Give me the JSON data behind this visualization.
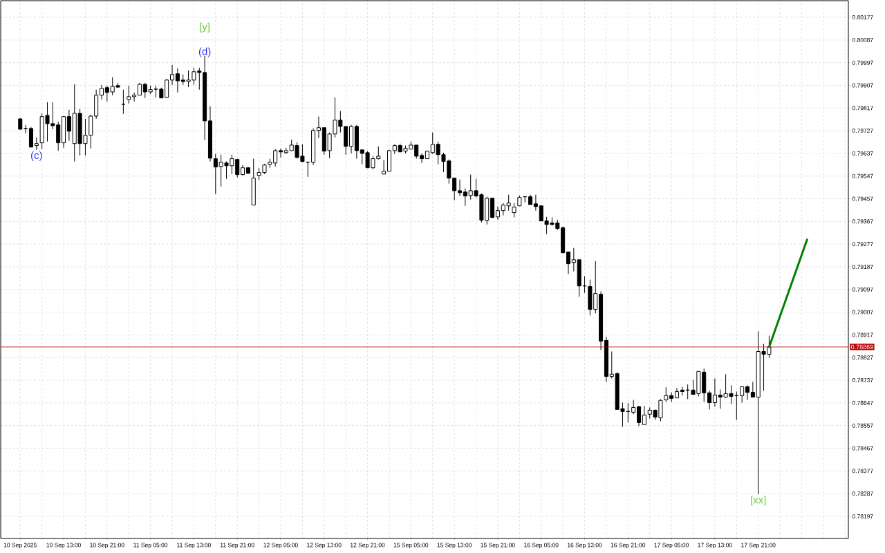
{
  "chart_data": {
    "type": "candlestick",
    "categories": [
      "10 Sep 2025",
      null,
      null,
      null,
      null,
      null,
      null,
      null,
      "10 Sep 13:00",
      null,
      null,
      null,
      null,
      null,
      null,
      null,
      "10 Sep 21:00",
      null,
      null,
      null,
      null,
      null,
      null,
      null,
      "11 Sep 05:00",
      null,
      null,
      null,
      null,
      null,
      null,
      null,
      "11 Sep 13:00",
      null,
      null,
      null,
      null,
      null,
      null,
      null,
      "11 Sep 21:00",
      null,
      null,
      null,
      null,
      null,
      null,
      null,
      "12 Sep 05:00",
      null,
      null,
      null,
      null,
      null,
      null,
      null,
      "12 Sep 13:00",
      null,
      null,
      null,
      null,
      null,
      null,
      null,
      "12 Sep 21:00",
      null,
      null,
      null,
      null,
      null,
      null,
      null,
      "15 Sep 05:00",
      null,
      null,
      null,
      null,
      null,
      null,
      null,
      "15 Sep 13:00",
      null,
      null,
      null,
      null,
      null,
      null,
      null,
      "15 Sep 21:00",
      null,
      null,
      null,
      null,
      null,
      null,
      null,
      "16 Sep 05:00",
      null,
      null,
      null,
      null,
      null,
      null,
      null,
      "16 Sep 13:00",
      null,
      null,
      null,
      null,
      null,
      null,
      null,
      "16 Sep 21:00",
      null,
      null,
      null,
      null,
      null,
      null,
      null,
      "17 Sep 05:00",
      null,
      null,
      null,
      null,
      null,
      null,
      null,
      "17 Sep 13:00",
      null,
      null,
      null,
      null,
      null,
      null,
      null,
      "17 Sep 21:00",
      null,
      null,
      null,
      null,
      null,
      null,
      null,
      null,
      null,
      null,
      null,
      null,
      null,
      null,
      null,
      null
    ],
    "ohlc": [
      [
        0.79774,
        0.79777,
        0.79731,
        0.79733
      ],
      [
        0.79736,
        0.7975,
        0.79717,
        0.79736
      ],
      [
        0.79736,
        0.79742,
        0.79662,
        0.79662
      ],
      [
        0.79668,
        0.797,
        0.79651,
        0.79676
      ],
      [
        0.79679,
        0.79796,
        0.79654,
        0.79783
      ],
      [
        0.79788,
        0.7984,
        0.79684,
        0.79755
      ],
      [
        0.79755,
        0.7984,
        0.79733,
        0.79747
      ],
      [
        0.7975,
        0.79763,
        0.79648,
        0.79679
      ],
      [
        0.79679,
        0.79785,
        0.79659,
        0.79783
      ],
      [
        0.79783,
        0.7981,
        0.79687,
        0.79725
      ],
      [
        0.79676,
        0.79911,
        0.79605,
        0.79796
      ],
      [
        0.79796,
        0.79813,
        0.79629,
        0.79676
      ],
      [
        0.79676,
        0.79774,
        0.79629,
        0.79709
      ],
      [
        0.79709,
        0.79791,
        0.79657,
        0.79785
      ],
      [
        0.79785,
        0.7989,
        0.79774,
        0.79868
      ],
      [
        0.79868,
        0.79909,
        0.79851,
        0.79895
      ],
      [
        0.79898,
        0.79906,
        0.79843,
        0.79879
      ],
      [
        0.79881,
        0.79939,
        0.79868,
        0.79903
      ],
      [
        0.79906,
        0.79917,
        0.79898,
        0.799
      ],
      [
        0.79832,
        0.7989,
        0.79794,
        0.79832
      ],
      [
        0.79851,
        0.79906,
        0.79835,
        0.79862
      ],
      [
        0.79862,
        0.79879,
        0.79843,
        0.79868
      ],
      [
        0.79868,
        0.79917,
        0.79868,
        0.79911
      ],
      [
        0.79911,
        0.79917,
        0.79857,
        0.79881
      ],
      [
        0.79881,
        0.79906,
        0.79873,
        0.7989
      ],
      [
        0.79892,
        0.79906,
        0.79859,
        0.79892
      ],
      [
        0.79892,
        0.79898,
        0.79857,
        0.79857
      ],
      [
        0.79859,
        0.79933,
        0.79857,
        0.79928
      ],
      [
        0.79928,
        0.79988,
        0.79909,
        0.7995
      ],
      [
        0.79953,
        0.79974,
        0.79879,
        0.79925
      ],
      [
        0.79928,
        0.7995,
        0.79909,
        0.79922
      ],
      [
        0.79922,
        0.79966,
        0.799,
        0.79928
      ],
      [
        0.79928,
        0.79977,
        0.79909,
        0.79961
      ],
      [
        0.79964,
        0.79977,
        0.7989,
        0.79958
      ],
      [
        0.79958,
        0.80024,
        0.7969,
        0.79766
      ],
      [
        0.79766,
        0.79824,
        0.79605,
        0.79618
      ],
      [
        0.79616,
        0.79635,
        0.79476,
        0.79583
      ],
      [
        0.79585,
        0.79632,
        0.79506,
        0.79602
      ],
      [
        0.79599,
        0.79605,
        0.79536,
        0.79588
      ],
      [
        0.79588,
        0.79632,
        0.79555,
        0.79616
      ],
      [
        0.79613,
        0.79616,
        0.79542,
        0.79553
      ],
      [
        0.79553,
        0.79591,
        0.7955,
        0.7958
      ],
      [
        0.7958,
        0.79583,
        0.79555,
        0.79558
      ],
      [
        0.79432,
        0.79616,
        0.79432,
        0.79539
      ],
      [
        0.7955,
        0.7958,
        0.79531,
        0.79561
      ],
      [
        0.79561,
        0.79596,
        0.79555,
        0.79591
      ],
      [
        0.79594,
        0.79616,
        0.7958,
        0.79602
      ],
      [
        0.79599,
        0.79654,
        0.79585,
        0.79648
      ],
      [
        0.79648,
        0.79657,
        0.79621,
        0.79643
      ],
      [
        0.7964,
        0.79659,
        0.79635,
        0.79648
      ],
      [
        0.79648,
        0.79692,
        0.79648,
        0.7967
      ],
      [
        0.79668,
        0.79681,
        0.79616,
        0.79621
      ],
      [
        0.79626,
        0.79673,
        0.79602,
        0.79605
      ],
      [
        0.79602,
        0.79605,
        0.79544,
        0.79602
      ],
      [
        0.79602,
        0.79736,
        0.79591,
        0.79728
      ],
      [
        0.79728,
        0.79783,
        0.79698,
        0.79739
      ],
      [
        0.79739,
        0.79739,
        0.79632,
        0.79646
      ],
      [
        0.79648,
        0.7972,
        0.79618,
        0.79714
      ],
      [
        0.79714,
        0.79859,
        0.797,
        0.79769
      ],
      [
        0.79769,
        0.79805,
        0.7972,
        0.79744
      ],
      [
        0.79744,
        0.79744,
        0.79632,
        0.79665
      ],
      [
        0.79665,
        0.7975,
        0.79637,
        0.79744
      ],
      [
        0.79744,
        0.7975,
        0.79616,
        0.79648
      ],
      [
        0.79651,
        0.79651,
        0.79594,
        0.79637
      ],
      [
        0.7964,
        0.79646,
        0.7958,
        0.7958
      ],
      [
        0.7958,
        0.79626,
        0.79574,
        0.79616
      ],
      [
        0.79616,
        0.79665,
        0.79613,
        0.79626
      ],
      [
        0.79555,
        0.7961,
        0.79555,
        0.79566
      ],
      [
        0.79566,
        0.79651,
        0.79566,
        0.79648
      ],
      [
        0.79648,
        0.79673,
        0.79635,
        0.79668
      ],
      [
        0.79668,
        0.79676,
        0.79643,
        0.79643
      ],
      [
        0.79646,
        0.79668,
        0.79637,
        0.79657
      ],
      [
        0.79654,
        0.79684,
        0.79654,
        0.7967
      ],
      [
        0.7967,
        0.7967,
        0.79616,
        0.79626
      ],
      [
        0.79629,
        0.79637,
        0.79599,
        0.79616
      ],
      [
        0.79616,
        0.79648,
        0.79616,
        0.79646
      ],
      [
        0.7964,
        0.7972,
        0.79635,
        0.79673
      ],
      [
        0.79673,
        0.79684,
        0.79594,
        0.79632
      ],
      [
        0.79632,
        0.7964,
        0.79563,
        0.79605
      ],
      [
        0.79607,
        0.79613,
        0.79517,
        0.79539
      ],
      [
        0.79539,
        0.79539,
        0.79451,
        0.79489
      ],
      [
        0.79489,
        0.79533,
        0.79468,
        0.79481
      ],
      [
        0.79484,
        0.79498,
        0.79429,
        0.79468
      ],
      [
        0.7947,
        0.79553,
        0.79454,
        0.79489
      ],
      [
        0.79489,
        0.79536,
        0.79462,
        0.79468
      ],
      [
        0.79473,
        0.79478,
        0.79363,
        0.79372
      ],
      [
        0.79372,
        0.79465,
        0.79355,
        0.79459
      ],
      [
        0.79459,
        0.79462,
        0.7938,
        0.79383
      ],
      [
        0.79385,
        0.79426,
        0.79374,
        0.7941
      ],
      [
        0.7941,
        0.7944,
        0.79391,
        0.79432
      ],
      [
        0.79429,
        0.79473,
        0.7941,
        0.7944
      ],
      [
        0.79402,
        0.7944,
        0.79383,
        0.79424
      ],
      [
        0.79429,
        0.7947,
        0.79429,
        0.79462
      ],
      [
        0.79465,
        0.79465,
        0.79443,
        0.79465
      ],
      [
        0.79465,
        0.79473,
        0.79434,
        0.79434
      ],
      [
        0.79437,
        0.79473,
        0.7941,
        0.79426
      ],
      [
        0.79429,
        0.79429,
        0.79369,
        0.79369
      ],
      [
        0.79369,
        0.79385,
        0.79317,
        0.79355
      ],
      [
        0.79361,
        0.79383,
        0.7935,
        0.79355
      ],
      [
        0.79361,
        0.79374,
        0.79333,
        0.79339
      ],
      [
        0.79342,
        0.79347,
        0.7924,
        0.79243
      ],
      [
        0.79246,
        0.79246,
        0.79158,
        0.79199
      ],
      [
        0.79204,
        0.79262,
        0.79169,
        0.79215
      ],
      [
        0.79215,
        0.79215,
        0.79068,
        0.79111
      ],
      [
        0.79111,
        0.7915,
        0.79084,
        0.79111
      ],
      [
        0.79109,
        0.79136,
        0.78994,
        0.79018
      ],
      [
        0.79018,
        0.7921,
        0.79002,
        0.79081
      ],
      [
        0.79078,
        0.79089,
        0.78857,
        0.78892
      ],
      [
        0.78895,
        0.78909,
        0.78731,
        0.78752
      ],
      [
        0.78752,
        0.78851,
        0.78744,
        0.78761
      ],
      [
        0.78763,
        0.78769,
        0.78621,
        0.78621
      ],
      [
        0.78624,
        0.78648,
        0.78552,
        0.78613
      ],
      [
        0.78613,
        0.78646,
        0.78569,
        0.78613
      ],
      [
        0.7861,
        0.78659,
        0.78602,
        0.78629
      ],
      [
        0.78632,
        0.78635,
        0.78555,
        0.78569
      ],
      [
        0.78561,
        0.78635,
        0.78561,
        0.78599
      ],
      [
        0.78602,
        0.78629,
        0.78585,
        0.78618
      ],
      [
        0.78618,
        0.78621,
        0.7858,
        0.78591
      ],
      [
        0.78588,
        0.78662,
        0.78574,
        0.78657
      ],
      [
        0.78659,
        0.78709,
        0.78651,
        0.78676
      ],
      [
        0.78676,
        0.78689,
        0.78651,
        0.78665
      ],
      [
        0.78667,
        0.78706,
        0.78665,
        0.78692
      ],
      [
        0.78698,
        0.78711,
        0.78676,
        0.78692
      ],
      [
        0.78698,
        0.7872,
        0.78662,
        0.78698
      ],
      [
        0.78698,
        0.78739,
        0.78681,
        0.78681
      ],
      [
        0.78684,
        0.78772,
        0.78673,
        0.78772
      ],
      [
        0.78769,
        0.78783,
        0.78651,
        0.78687
      ],
      [
        0.78687,
        0.78695,
        0.78621,
        0.78648
      ],
      [
        0.78648,
        0.78744,
        0.78632,
        0.78678
      ],
      [
        0.78678,
        0.787,
        0.78624,
        0.7867
      ],
      [
        0.7867,
        0.78761,
        0.78667,
        0.78684
      ],
      [
        0.78684,
        0.78717,
        0.78643,
        0.78673
      ],
      [
        0.78676,
        0.78692,
        0.7858,
        0.78676
      ],
      [
        0.78676,
        0.78711,
        0.78648,
        0.78711
      ],
      [
        0.78711,
        0.78717,
        0.78659,
        0.78689
      ],
      [
        0.78689,
        0.78731,
        0.7867,
        0.7867
      ],
      [
        0.7867,
        0.78931,
        0.78284,
        0.78851
      ],
      [
        0.78851,
        0.78881,
        0.78695,
        0.7884
      ],
      [
        0.7884,
        0.78914,
        0.78826,
        0.78869
      ],
      null,
      null,
      null,
      null,
      null,
      null,
      null,
      null,
      null,
      null,
      null,
      null,
      null,
      null
    ],
    "series": [
      {
        "type": "line",
        "color": "#008000",
        "values": [
          null,
          null,
          null,
          null,
          null,
          null,
          null,
          null,
          null,
          null,
          null,
          null,
          null,
          null,
          null,
          null,
          null,
          null,
          null,
          null,
          null,
          null,
          null,
          null,
          null,
          null,
          null,
          null,
          null,
          null,
          null,
          null,
          null,
          null,
          null,
          null,
          null,
          null,
          null,
          null,
          null,
          null,
          null,
          null,
          null,
          null,
          null,
          null,
          null,
          null,
          null,
          null,
          null,
          null,
          null,
          null,
          null,
          null,
          null,
          null,
          null,
          null,
          null,
          null,
          null,
          null,
          null,
          null,
          null,
          null,
          null,
          null,
          null,
          null,
          null,
          null,
          null,
          null,
          null,
          null,
          null,
          null,
          null,
          null,
          null,
          null,
          null,
          null,
          null,
          null,
          null,
          null,
          null,
          null,
          null,
          null,
          null,
          null,
          null,
          null,
          null,
          null,
          null,
          null,
          null,
          null,
          null,
          null,
          null,
          null,
          null,
          null,
          null,
          null,
          null,
          null,
          null,
          null,
          null,
          null,
          null,
          null,
          null,
          null,
          null,
          null,
          null,
          null,
          null,
          null,
          null,
          null,
          null,
          null,
          null,
          null,
          null,
          null,
          0.78869,
          null,
          null,
          null,
          null,
          null,
          null,
          0.79295,
          null,
          null,
          null,
          null,
          null,
          null,
          null
        ]
      }
    ],
    "ylim": [
      0.78109,
      0.80243
    ],
    "yticks": [
      0.78197,
      0.78287,
      0.78377,
      0.78467,
      0.78557,
      0.78647,
      0.78737,
      0.78827,
      0.78917,
      0.79007,
      0.79097,
      0.79187,
      0.79277,
      0.79367,
      0.79457,
      0.79547,
      0.79637,
      0.79727,
      0.79817,
      0.79907,
      0.79997,
      0.80087,
      0.80177
    ],
    "grid": true,
    "ref_lines": [
      {
        "axis": "y",
        "value": 0.78869,
        "label": "0.78869",
        "color": "#c00000"
      }
    ],
    "annotations": [
      {
        "text": "[y]",
        "y": 0.80024
      },
      {
        "text": "(d)",
        "y": 0.80024
      },
      {
        "text": "(c)",
        "y": 0.79651
      },
      {
        "text": "[xx]",
        "y": 0.78284
      }
    ]
  }
}
